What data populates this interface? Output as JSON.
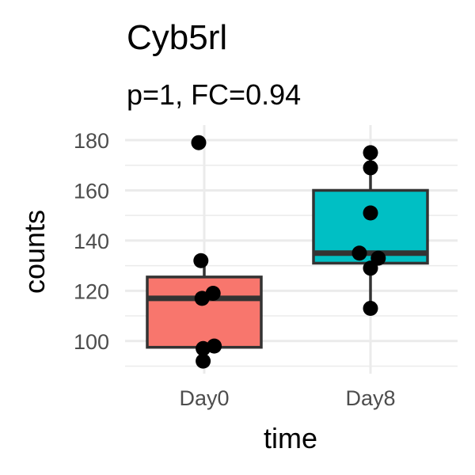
{
  "chart_data": {
    "type": "boxplot",
    "title": "Cyb5rl",
    "subtitle": "p=1, FC=0.94",
    "xlabel": "time",
    "ylabel": "counts",
    "categories": [
      "Day0",
      "Day8"
    ],
    "ylim": [
      87,
      186
    ],
    "yticks": [
      100,
      120,
      140,
      160,
      180
    ],
    "grid": true,
    "boxes": [
      {
        "category": "Day0",
        "color": "#F8766D",
        "whisker_low": 92,
        "q1": 97.5,
        "median": 117,
        "q3": 125.5,
        "whisker_high": 132
      },
      {
        "category": "Day8",
        "color": "#00BFC4",
        "whisker_low": 113,
        "q1": 131,
        "median": 135,
        "q3": 160,
        "whisker_high": 175
      }
    ],
    "points": [
      {
        "category": "Day0",
        "jitter": -0.05,
        "value": 179
      },
      {
        "category": "Day0",
        "jitter": -0.03,
        "value": 132
      },
      {
        "category": "Day0",
        "jitter": 0.08,
        "value": 119
      },
      {
        "category": "Day0",
        "jitter": -0.02,
        "value": 117
      },
      {
        "category": "Day0",
        "jitter": 0.09,
        "value": 98
      },
      {
        "category": "Day0",
        "jitter": -0.01,
        "value": 97
      },
      {
        "category": "Day0",
        "jitter": -0.01,
        "value": 92
      },
      {
        "category": "Day8",
        "jitter": 0.0,
        "value": 175
      },
      {
        "category": "Day8",
        "jitter": 0.0,
        "value": 169
      },
      {
        "category": "Day8",
        "jitter": 0.0,
        "value": 151
      },
      {
        "category": "Day8",
        "jitter": -0.1,
        "value": 135
      },
      {
        "category": "Day8",
        "jitter": 0.07,
        "value": 133
      },
      {
        "category": "Day8",
        "jitter": 0.0,
        "value": 129
      },
      {
        "category": "Day8",
        "jitter": 0.0,
        "value": 113
      }
    ]
  }
}
